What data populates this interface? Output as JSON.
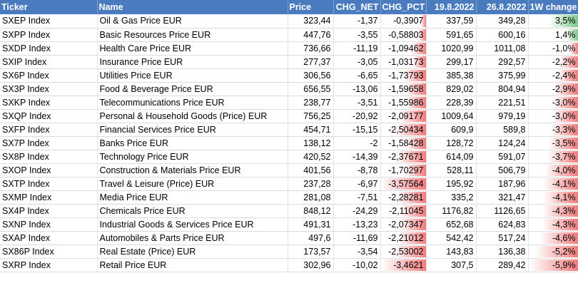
{
  "headers": [
    "Ticker",
    "Name",
    "Price",
    "CHG_NET",
    "CHG_PCT_",
    "19.8.2022",
    "26.8.2022",
    "1W change"
  ],
  "rows": [
    {
      "ticker": "SXEP Index",
      "name": "Oil & Gas Price EUR",
      "price": "323,44",
      "chg_net": "-1,37",
      "chg_pct": "-0,3907",
      "d1": "337,59",
      "d2": "349,28",
      "w": "3,5%",
      "pct_val": -0.3907,
      "w_val": 3.5
    },
    {
      "ticker": "SXPP Index",
      "name": "Basic Resources Price EUR",
      "price": "447,76",
      "chg_net": "-3,55",
      "chg_pct": "-0,58803",
      "d1": "591,65",
      "d2": "600,16",
      "w": "1,4%",
      "pct_val": -0.58803,
      "w_val": 1.4
    },
    {
      "ticker": "SXDP Index",
      "name": "Health Care Price EUR",
      "price": "736,66",
      "chg_net": "-11,19",
      "chg_pct": "-1,09462",
      "d1": "1020,99",
      "d2": "1011,08",
      "w": "-1,0%",
      "pct_val": -1.09462,
      "w_val": -1.0
    },
    {
      "ticker": "SXIP Index",
      "name": "Insurance Price EUR",
      "price": "277,37",
      "chg_net": "-3,05",
      "chg_pct": "-1,03173",
      "d1": "299,17",
      "d2": "292,57",
      "w": "-2,2%",
      "pct_val": -1.03173,
      "w_val": -2.2
    },
    {
      "ticker": "SX6P Index",
      "name": "Utilities Price EUR",
      "price": "306,56",
      "chg_net": "-6,65",
      "chg_pct": "-1,73793",
      "d1": "385,38",
      "d2": "375,99",
      "w": "-2,4%",
      "pct_val": -1.73793,
      "w_val": -2.4
    },
    {
      "ticker": "SX3P Index",
      "name": "Food & Beverage Price EUR",
      "price": "656,55",
      "chg_net": "-13,06",
      "chg_pct": "-1,59658",
      "d1": "829,02",
      "d2": "804,94",
      "w": "-2,9%",
      "pct_val": -1.59658,
      "w_val": -2.9
    },
    {
      "ticker": "SXKP Index",
      "name": "Telecommunications Price EUR",
      "price": "238,77",
      "chg_net": "-3,51",
      "chg_pct": "-1,55986",
      "d1": "228,39",
      "d2": "221,51",
      "w": "-3,0%",
      "pct_val": -1.55986,
      "w_val": -3.0
    },
    {
      "ticker": "SXQP Index",
      "name": "Personal & Household Goods (Price) EUR",
      "price": "756,25",
      "chg_net": "-20,92",
      "chg_pct": "-2,09177",
      "d1": "1009,64",
      "d2": "979,19",
      "w": "-3,0%",
      "pct_val": -2.09177,
      "w_val": -3.0
    },
    {
      "ticker": "SXFP Index",
      "name": "Financial Services Price EUR",
      "price": "454,71",
      "chg_net": "-15,15",
      "chg_pct": "-2,50434",
      "d1": "609,9",
      "d2": "589,8",
      "w": "-3,3%",
      "pct_val": -2.50434,
      "w_val": -3.3
    },
    {
      "ticker": "SX7P Index",
      "name": "Banks Price EUR",
      "price": "138,12",
      "chg_net": "-2",
      "chg_pct": "-1,58428",
      "d1": "128,72",
      "d2": "124,24",
      "w": "-3,5%",
      "pct_val": -1.58428,
      "w_val": -3.5
    },
    {
      "ticker": "SX8P Index",
      "name": "Technology Price EUR",
      "price": "420,52",
      "chg_net": "-14,39",
      "chg_pct": "-2,37671",
      "d1": "614,09",
      "d2": "591,07",
      "w": "-3,7%",
      "pct_val": -2.37671,
      "w_val": -3.7
    },
    {
      "ticker": "SXOP Index",
      "name": "Construction & Materials Price EUR",
      "price": "401,56",
      "chg_net": "-8,78",
      "chg_pct": "-1,70297",
      "d1": "528,11",
      "d2": "506,79",
      "w": "-4,0%",
      "pct_val": -1.70297,
      "w_val": -4.0
    },
    {
      "ticker": "SXTP Index",
      "name": "Travel & Leisure (Price) EUR",
      "price": "237,28",
      "chg_net": "-6,97",
      "chg_pct": "-3,57564",
      "d1": "195,92",
      "d2": "187,96",
      "w": "-4,1%",
      "pct_val": -3.57564,
      "w_val": -4.1
    },
    {
      "ticker": "SXMP Index",
      "name": "Media Price EUR",
      "price": "281,08",
      "chg_net": "-7,51",
      "chg_pct": "-2,28281",
      "d1": "335,2",
      "d2": "321,47",
      "w": "-4,1%",
      "pct_val": -2.28281,
      "w_val": -4.1
    },
    {
      "ticker": "SX4P Index",
      "name": "Chemicals Price EUR",
      "price": "848,12",
      "chg_net": "-24,29",
      "chg_pct": "-2,11045",
      "d1": "1176,82",
      "d2": "1126,65",
      "w": "-4,3%",
      "pct_val": -2.11045,
      "w_val": -4.3
    },
    {
      "ticker": "SXNP Index",
      "name": "Industrial Goods & Services Price EUR",
      "price": "491,31",
      "chg_net": "-13,23",
      "chg_pct": "-2,07347",
      "d1": "652,68",
      "d2": "624,83",
      "w": "-4,3%",
      "pct_val": -2.07347,
      "w_val": -4.3
    },
    {
      "ticker": "SXAP Index",
      "name": "Automobiles & Parts Price EUR",
      "price": "497,6",
      "chg_net": "-11,69",
      "chg_pct": "-2,21012",
      "d1": "542,42",
      "d2": "517,24",
      "w": "-4,6%",
      "pct_val": -2.21012,
      "w_val": -4.6
    },
    {
      "ticker": "SX86P Index",
      "name": "Real Estate (Price) EUR",
      "price": "173,57",
      "chg_net": "-3,54",
      "chg_pct": "-2,53002",
      "d1": "143,83",
      "d2": "136,38",
      "w": "-5,2%",
      "pct_val": -2.53002,
      "w_val": -5.2
    },
    {
      "ticker": "SXRP Index",
      "name": "Retail Price EUR",
      "price": "302,96",
      "chg_net": "-10,02",
      "chg_pct": "-3,4621",
      "d1": "307,5",
      "d2": "289,42",
      "w": "-5,9%",
      "pct_val": -3.4621,
      "w_val": -5.9
    }
  ],
  "colors": {
    "header": "#4a7bbe",
    "neg_bar": "#f27b7b",
    "pos_bar": "#7cc98a"
  }
}
